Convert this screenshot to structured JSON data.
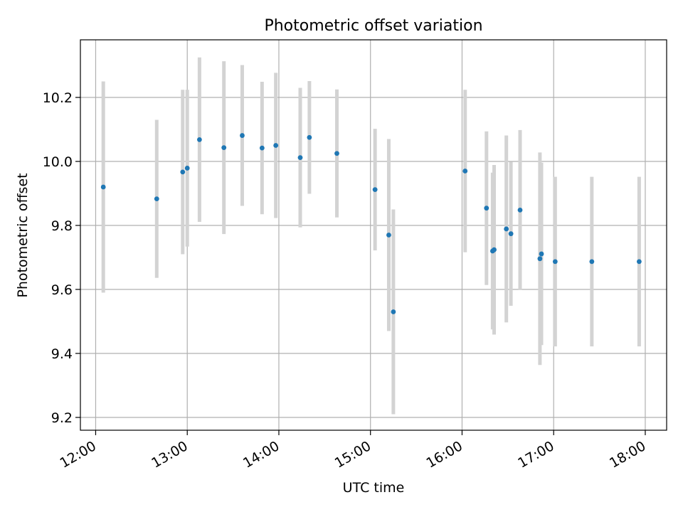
{
  "chart_data": {
    "type": "scatter",
    "title": "Photometric offset variation",
    "xlabel": "UTC time",
    "ylabel": "Photometric offset",
    "xlim": [
      "11:50",
      "18:14"
    ],
    "ylim": [
      9.16,
      10.38
    ],
    "x_ticks": [
      "12:00",
      "13:00",
      "14:00",
      "15:00",
      "16:00",
      "17:00",
      "18:00"
    ],
    "y_ticks": [
      "9.2",
      "9.4",
      "9.6",
      "9.8",
      "10.0",
      "10.2"
    ],
    "grid": true,
    "colors": {
      "point": "#1f77b4",
      "errorbar": "#d3d3d3",
      "grid": "#b0b0b0"
    },
    "points": [
      {
        "x": "12:05",
        "y": 9.92,
        "err": 0.33
      },
      {
        "x": "12:40",
        "y": 9.883,
        "err": 0.247
      },
      {
        "x": "12:57",
        "y": 9.967,
        "err": 0.257
      },
      {
        "x": "13:00",
        "y": 9.979,
        "err": 0.245
      },
      {
        "x": "13:08",
        "y": 10.068,
        "err": 0.257
      },
      {
        "x": "13:24",
        "y": 10.043,
        "err": 0.27
      },
      {
        "x": "13:36",
        "y": 10.081,
        "err": 0.22
      },
      {
        "x": "13:49",
        "y": 10.042,
        "err": 0.207
      },
      {
        "x": "13:58",
        "y": 10.05,
        "err": 0.227
      },
      {
        "x": "14:14",
        "y": 10.012,
        "err": 0.218
      },
      {
        "x": "14:20",
        "y": 10.075,
        "err": 0.176
      },
      {
        "x": "14:38",
        "y": 10.025,
        "err": 0.2
      },
      {
        "x": "15:03",
        "y": 9.912,
        "err": 0.19
      },
      {
        "x": "15:12",
        "y": 9.77,
        "err": 0.3
      },
      {
        "x": "15:15",
        "y": 9.53,
        "err": 0.32
      },
      {
        "x": "16:02",
        "y": 9.97,
        "err": 0.254
      },
      {
        "x": "16:16",
        "y": 9.854,
        "err": 0.24
      },
      {
        "x": "16:20",
        "y": 9.72,
        "err": 0.245
      },
      {
        "x": "16:21",
        "y": 9.724,
        "err": 0.265
      },
      {
        "x": "16:29",
        "y": 9.789,
        "err": 0.292
      },
      {
        "x": "16:32",
        "y": 9.774,
        "err": 0.225
      },
      {
        "x": "16:38",
        "y": 9.848,
        "err": 0.25
      },
      {
        "x": "16:51",
        "y": 9.696,
        "err": 0.332
      },
      {
        "x": "16:52",
        "y": 9.711,
        "err": 0.285
      },
      {
        "x": "17:01",
        "y": 9.687,
        "err": 0.265
      },
      {
        "x": "17:25",
        "y": 9.687,
        "err": 0.265
      },
      {
        "x": "17:56",
        "y": 9.687,
        "err": 0.265
      }
    ]
  }
}
